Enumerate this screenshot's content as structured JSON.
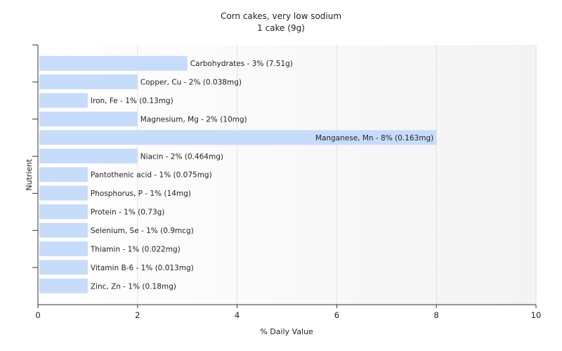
{
  "chart_data": {
    "type": "bar",
    "orientation": "horizontal",
    "title": "Corn cakes, very low sodium",
    "subtitle": "1 cake (9g)",
    "xlabel": "% Daily Value",
    "ylabel": "Nutrient",
    "xlim": [
      0,
      10
    ],
    "xticks": [
      "0",
      "2",
      "4",
      "6",
      "8",
      "10"
    ],
    "grid": true,
    "bar_color": "#c7dcfa",
    "categories": [
      "Carbohydrates",
      "Copper, Cu",
      "Iron, Fe",
      "Magnesium, Mg",
      "Manganese, Mn",
      "Niacin",
      "Pantothenic acid",
      "Phosphorus, P",
      "Protein",
      "Selenium, Se",
      "Thiamin",
      "Vitamin B-6",
      "Zinc, Zn"
    ],
    "values": [
      3,
      2,
      1,
      2,
      8,
      2,
      1,
      1,
      1,
      1,
      1,
      1,
      1
    ],
    "labels": [
      "Carbohydrates - 3% (7.51g)",
      "Copper, Cu - 2% (0.038mg)",
      "Iron, Fe - 1% (0.13mg)",
      "Magnesium, Mg - 2% (10mg)",
      "Manganese, Mn - 8% (0.163mg)",
      "Niacin - 2% (0.464mg)",
      "Pantothenic acid - 1% (0.075mg)",
      "Phosphorus, P - 1% (14mg)",
      "Protein - 1% (0.73g)",
      "Selenium, Se - 1% (0.9mcg)",
      "Thiamin - 1% (0.022mg)",
      "Vitamin B-6 - 1% (0.013mg)",
      "Zinc, Zn - 1% (0.18mg)"
    ]
  }
}
